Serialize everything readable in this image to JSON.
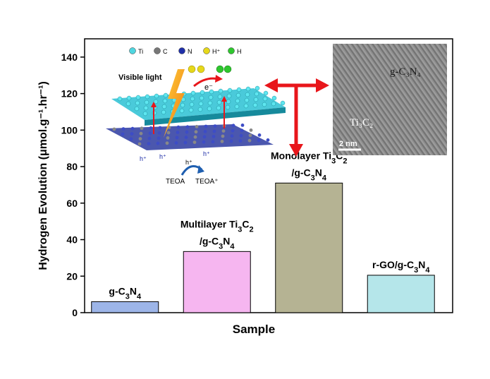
{
  "chart_data": {
    "type": "bar",
    "xlabel": "Sample",
    "ylabel": "Hydrogen Evolution (μmol.g⁻¹.hr⁻¹)",
    "ylim": [
      0,
      150
    ],
    "yticks": [
      0,
      20,
      40,
      60,
      80,
      100,
      120,
      140
    ],
    "grid": false,
    "categories": [
      "g-C3N4",
      "Multilayer Ti3C2/g-C3N4",
      "Monolayer Ti3C2/g-C3N4",
      "r-GO/g-C3N4"
    ],
    "values": [
      6,
      33.5,
      71,
      20.5
    ],
    "bar_colors": [
      "#9db5e8",
      "#f6b6f0",
      "#b5b393",
      "#b5e6ea"
    ]
  },
  "inset_schematic": {
    "legend": [
      {
        "label": "Ti",
        "color": "#4fd6e0"
      },
      {
        "label": "C",
        "color": "#777777"
      },
      {
        "label": "N",
        "color": "#1f2fa8"
      },
      {
        "label": "H⁺",
        "color": "#e6d81a"
      },
      {
        "label": "H",
        "color": "#2ec72e"
      }
    ],
    "light_label": "Visible light",
    "electron_label": "e⁻",
    "hole_label": "h⁺",
    "donor_label": "TEOA",
    "oxidized_label": "TEOA⁺"
  },
  "inset_tem": {
    "label_top": "g-C₃N₄",
    "label_mid": "Ti₃C₂",
    "scale_bar": "2 nm"
  },
  "colors": {
    "arrow_red": "#e8161b",
    "axis": "#000000",
    "lightning": "#f39a1c"
  }
}
